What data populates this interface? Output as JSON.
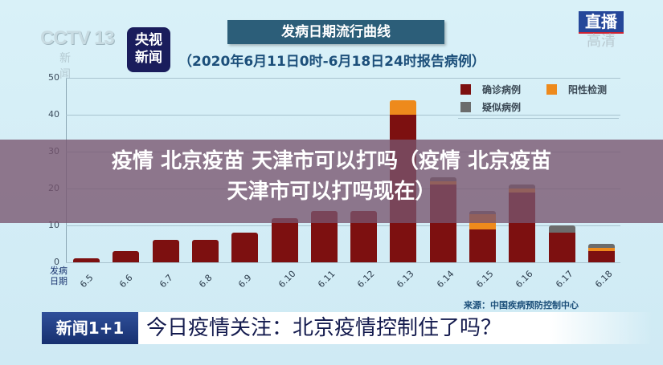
{
  "header": {
    "channel_logo": "CCTV 13",
    "channel_sub": "新 闻",
    "app_badge": [
      "央视",
      "新闻"
    ],
    "live_badge": "直播",
    "hd_badge": "高清"
  },
  "chart_data": {
    "type": "bar",
    "stacked": true,
    "title": "发病日期流行曲线",
    "subtitle": "（2020年6月11日0时-6月18日24时报告病例）",
    "xlabel": "发病日期",
    "ylabel": "",
    "ylim": [
      0,
      50
    ],
    "yticks": [
      0,
      10,
      20,
      30,
      40,
      50
    ],
    "grid": true,
    "legend_position": "top-right",
    "categories": [
      "6.5",
      "6.6",
      "6.7",
      "6.8",
      "6.9",
      "6.10",
      "6.11",
      "6.12",
      "6.13",
      "6.14",
      "6.15",
      "6.16",
      "6.17",
      "6.18"
    ],
    "series": [
      {
        "name": "确诊病例",
        "color": "#7d1010",
        "values": [
          1,
          3,
          6,
          6,
          8,
          12,
          14,
          14,
          40,
          21,
          9,
          19,
          8,
          3
        ]
      },
      {
        "name": "阳性检测",
        "color": "#ee8a1c",
        "values": [
          0,
          0,
          0,
          0,
          0,
          0,
          0,
          0,
          4,
          1,
          4,
          1,
          0,
          1
        ]
      },
      {
        "name": "疑似病例",
        "color": "#6c6c6c",
        "values": [
          0,
          0,
          0,
          0,
          0,
          0,
          0,
          0,
          0,
          1,
          1,
          1,
          2,
          1
        ]
      }
    ],
    "source": "来源：中国疾病预防控制中心"
  },
  "legend": [
    {
      "label": "确诊病例",
      "color": "#7d1010"
    },
    {
      "label": "阳性检测",
      "color": "#ee8a1c"
    },
    {
      "label": "疑似病例",
      "color": "#6c6c6c"
    }
  ],
  "overlay": {
    "line1": "疫情 北京疫苗 天津市可以打吗（疫情 北京疫苗",
    "line2": "天津市可以打吗现在）"
  },
  "ticker": {
    "logo": "新闻1+1",
    "headline": "今日疫情关注：北京疫情控制住了吗？"
  }
}
